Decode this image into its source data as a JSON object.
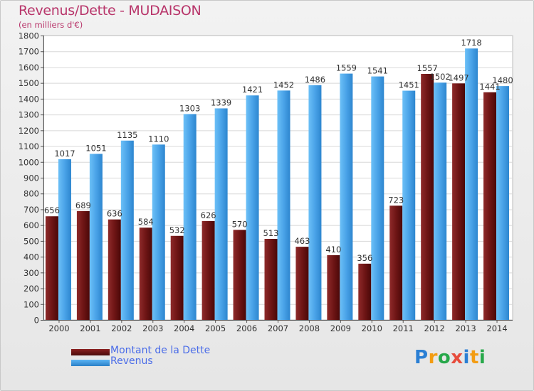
{
  "chart_data": {
    "type": "bar",
    "title": "Revenus/Dette - MUDAISON",
    "subtitle": "(en milliers d'€)",
    "categories": [
      "2000",
      "2001",
      "2002",
      "2003",
      "2004",
      "2005",
      "2006",
      "2007",
      "2008",
      "2009",
      "2010",
      "2011",
      "2012",
      "2013",
      "2014"
    ],
    "series": [
      {
        "name": "Montant de la Dette",
        "color": "#7a1a1a",
        "values": [
          656,
          689,
          636,
          584,
          532,
          626,
          570,
          513,
          463,
          410,
          356,
          723,
          1557,
          1497,
          1441
        ]
      },
      {
        "name": "Revenus",
        "color": "#4aa3e8",
        "values": [
          1017,
          1051,
          1135,
          1110,
          1303,
          1339,
          1421,
          1452,
          1486,
          1559,
          1541,
          1451,
          1502,
          1718,
          1480
        ]
      }
    ],
    "data_labels": [
      [
        "656",
        "689",
        "636",
        "584",
        "532",
        "626",
        "570",
        "513",
        "463",
        "410",
        "356",
        "723",
        "1557",
        "1497",
        "1441"
      ],
      [
        "1017",
        "1051",
        "1135",
        "1110",
        "1303",
        "1339",
        "1421",
        "1452",
        "1486",
        "1559",
        "1541",
        "1451",
        "1502",
        "1718",
        "1480"
      ]
    ],
    "y_ticks": [
      0,
      100,
      200,
      300,
      400,
      500,
      600,
      700,
      800,
      900,
      1000,
      1100,
      1200,
      1300,
      1400,
      1500,
      1600,
      1700,
      1800
    ],
    "ylim": [
      0,
      1800
    ],
    "grid": true,
    "legend_position": "bottom-left"
  },
  "logo": {
    "letters": [
      "P",
      "r",
      "o",
      "x",
      "i",
      "t",
      "i"
    ],
    "colors": [
      "#2a7fd4",
      "#f39c12",
      "#27a84a",
      "#e74c3c",
      "#2a7fd4",
      "#f39c12",
      "#27a84a"
    ]
  }
}
